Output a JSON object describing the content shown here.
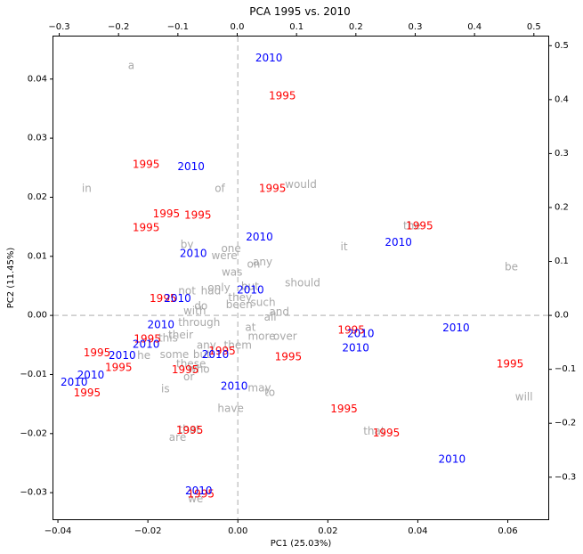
{
  "chart_data": {
    "type": "scatter",
    "title": "PCA 1995 vs. 2010",
    "xlabel": "PC1 (25.03%)",
    "ylabel": "PC2 (11.45%)",
    "xlim": [
      -0.041,
      0.069
    ],
    "ylim": [
      -0.0345,
      0.0472
    ],
    "x_ticks": [
      -0.04,
      -0.02,
      0.0,
      0.02,
      0.04,
      0.06
    ],
    "x_tick_labels": [
      "−0.04",
      "−0.02",
      "0.00",
      "0.02",
      "0.04",
      "0.06"
    ],
    "y_ticks": [
      -0.03,
      -0.02,
      -0.01,
      0.0,
      0.01,
      0.02,
      0.03,
      0.04
    ],
    "y_tick_labels": [
      "−0.03",
      "−0.02",
      "−0.01",
      "0.00",
      "0.01",
      "0.02",
      "0.03",
      "0.04"
    ],
    "top_axis": {
      "xlim": [
        -0.3098,
        0.5243
      ],
      "ticks": [
        -0.3,
        -0.2,
        -0.1,
        0.0,
        0.1,
        0.2,
        0.3,
        0.4,
        0.5
      ],
      "tick_labels": [
        "−0.3",
        "−0.2",
        "−0.1",
        "0.0",
        "0.1",
        "0.2",
        "0.3",
        "0.4",
        "0.5"
      ]
    },
    "right_axis": {
      "ylim": [
        -0.378,
        0.517
      ],
      "ticks": [
        -0.3,
        -0.2,
        -0.1,
        0.0,
        0.1,
        0.2,
        0.3,
        0.4,
        0.5
      ],
      "tick_labels": [
        "−0.3",
        "−0.2",
        "−0.1",
        "0.0",
        "0.1",
        "0.2",
        "0.3",
        "0.4",
        "0.5"
      ]
    },
    "zero_lines": true,
    "colors": {
      "1995": "#ff0000",
      "2010": "#0000ff",
      "word": "#a9a9a9",
      "zero_line": "#c8c8c8"
    },
    "series": [
      {
        "name": "1995",
        "points": [
          {
            "x": 0.0099,
            "y": 0.0372,
            "label": "1995"
          },
          {
            "x": -0.0204,
            "y": 0.0256,
            "label": "1995"
          },
          {
            "x": 0.0077,
            "y": 0.0215,
            "label": "1995"
          },
          {
            "x": -0.0159,
            "y": 0.0172,
            "label": "1995"
          },
          {
            "x": -0.0089,
            "y": 0.017,
            "label": "1995"
          },
          {
            "x": -0.0204,
            "y": 0.0149,
            "label": "1995"
          },
          {
            "x": 0.0404,
            "y": 0.0152,
            "label": "1995"
          },
          {
            "x": -0.0166,
            "y": 0.0029,
            "label": "1995"
          },
          {
            "x": -0.0201,
            "y": -0.004,
            "label": "1995"
          },
          {
            "x": -0.0313,
            "y": -0.0063,
            "label": "1995"
          },
          {
            "x": 0.0252,
            "y": -0.0025,
            "label": "1995"
          },
          {
            "x": 0.0112,
            "y": -0.007,
            "label": "1995"
          },
          {
            "x": -0.0035,
            "y": -0.006,
            "label": "1995"
          },
          {
            "x": -0.0265,
            "y": -0.0088,
            "label": "1995"
          },
          {
            "x": -0.0117,
            "y": -0.0092,
            "label": "1995"
          },
          {
            "x": 0.0605,
            "y": -0.0082,
            "label": "1995"
          },
          {
            "x": -0.0335,
            "y": -0.0131,
            "label": "1995"
          },
          {
            "x": 0.0236,
            "y": -0.0158,
            "label": "1995"
          },
          {
            "x": 0.033,
            "y": -0.0199,
            "label": "1995"
          },
          {
            "x": -0.0107,
            "y": -0.0194,
            "label": "1995"
          },
          {
            "x": -0.0082,
            "y": -0.0302,
            "label": "1995"
          }
        ]
      },
      {
        "name": "2010",
        "points": [
          {
            "x": 0.0069,
            "y": 0.0436,
            "label": "2010"
          },
          {
            "x": -0.0104,
            "y": 0.0252,
            "label": "2010"
          },
          {
            "x": 0.0048,
            "y": 0.0133,
            "label": "2010"
          },
          {
            "x": 0.0357,
            "y": 0.0124,
            "label": "2010"
          },
          {
            "x": -0.0099,
            "y": 0.0105,
            "label": "2010"
          },
          {
            "x": -0.0134,
            "y": 0.0029,
            "label": "2010"
          },
          {
            "x": 0.0028,
            "y": 0.0043,
            "label": "2010"
          },
          {
            "x": -0.0171,
            "y": -0.0016,
            "label": "2010"
          },
          {
            "x": 0.0485,
            "y": -0.0021,
            "label": "2010"
          },
          {
            "x": 0.0273,
            "y": -0.0031,
            "label": "2010"
          },
          {
            "x": -0.0204,
            "y": -0.0049,
            "label": "2010"
          },
          {
            "x": 0.0262,
            "y": -0.0055,
            "label": "2010"
          },
          {
            "x": -0.0257,
            "y": -0.0068,
            "label": "2010"
          },
          {
            "x": -0.005,
            "y": -0.0066,
            "label": "2010"
          },
          {
            "x": -0.0327,
            "y": -0.0101,
            "label": "2010"
          },
          {
            "x": -0.0364,
            "y": -0.0113,
            "label": "2010"
          },
          {
            "x": -0.0008,
            "y": -0.012,
            "label": "2010"
          },
          {
            "x": 0.0476,
            "y": -0.0243,
            "label": "2010"
          },
          {
            "x": -0.0087,
            "y": -0.0297,
            "label": "2010"
          }
        ]
      },
      {
        "name": "words",
        "points": [
          {
            "x": -0.0237,
            "y": 0.0423,
            "label": "a"
          },
          {
            "x": 0.014,
            "y": 0.0222,
            "label": "would"
          },
          {
            "x": -0.0336,
            "y": 0.0215,
            "label": "in"
          },
          {
            "x": -0.004,
            "y": 0.0215,
            "label": "of"
          },
          {
            "x": 0.0387,
            "y": 0.0152,
            "label": "the"
          },
          {
            "x": -0.0113,
            "y": 0.012,
            "label": "by"
          },
          {
            "x": -0.0015,
            "y": 0.0113,
            "label": "one"
          },
          {
            "x": 0.0236,
            "y": 0.0116,
            "label": "it"
          },
          {
            "x": -0.003,
            "y": 0.0101,
            "label": "were"
          },
          {
            "x": 0.0035,
            "y": 0.0087,
            "label": "on"
          },
          {
            "x": 0.0055,
            "y": 0.0091,
            "label": "any"
          },
          {
            "x": 0.0608,
            "y": 0.0082,
            "label": "be"
          },
          {
            "x": -0.0013,
            "y": 0.0073,
            "label": "was"
          },
          {
            "x": 0.0144,
            "y": 0.0055,
            "label": "should"
          },
          {
            "x": -0.0113,
            "y": 0.0042,
            "label": "not"
          },
          {
            "x": -0.0042,
            "y": 0.0047,
            "label": "only"
          },
          {
            "x": 0.0027,
            "y": 0.0049,
            "label": "but"
          },
          {
            "x": -0.006,
            "y": 0.0042,
            "label": "had"
          },
          {
            "x": 0.0056,
            "y": 0.0022,
            "label": "such"
          },
          {
            "x": 0.0005,
            "y": 0.003,
            "label": "they"
          },
          {
            "x": -0.0082,
            "y": 0.0016,
            "label": "do"
          },
          {
            "x": 0.0003,
            "y": 0.0018,
            "label": "been"
          },
          {
            "x": -0.0096,
            "y": 0.0008,
            "label": "with"
          },
          {
            "x": 0.0092,
            "y": 0.0006,
            "label": "and"
          },
          {
            "x": 0.0072,
            "y": -0.0003,
            "label": "all"
          },
          {
            "x": -0.0086,
            "y": -0.0012,
            "label": "through"
          },
          {
            "x": 0.0105,
            "y": -0.0035,
            "label": "over"
          },
          {
            "x": 0.0053,
            "y": -0.0035,
            "label": "more"
          },
          {
            "x": -0.0127,
            "y": -0.0033,
            "label": "their"
          },
          {
            "x": -0.0155,
            "y": -0.0038,
            "label": "this"
          },
          {
            "x": -0.007,
            "y": -0.005,
            "label": "any"
          },
          {
            "x": 0.0,
            "y": -0.005,
            "label": "them"
          },
          {
            "x": 0.0028,
            "y": -0.002,
            "label": "at"
          },
          {
            "x": -0.0141,
            "y": -0.0066,
            "label": "some"
          },
          {
            "x": -0.0209,
            "y": -0.0068,
            "label": "he"
          },
          {
            "x": -0.008,
            "y": -0.0066,
            "label": "but"
          },
          {
            "x": -0.0104,
            "y": -0.0082,
            "label": "these"
          },
          {
            "x": -0.0087,
            "y": -0.0091,
            "label": "who"
          },
          {
            "x": -0.0109,
            "y": -0.0104,
            "label": "or"
          },
          {
            "x": -0.0161,
            "y": -0.0124,
            "label": "is"
          },
          {
            "x": 0.0048,
            "y": -0.0123,
            "label": "may"
          },
          {
            "x": 0.0071,
            "y": -0.013,
            "label": "to"
          },
          {
            "x": -0.0016,
            "y": -0.0157,
            "label": "have"
          },
          {
            "x": 0.0636,
            "y": -0.0138,
            "label": "will"
          },
          {
            "x": 0.0303,
            "y": -0.0196,
            "label": "that"
          },
          {
            "x": -0.0108,
            "y": -0.0193,
            "label": "that"
          },
          {
            "x": -0.0134,
            "y": -0.0206,
            "label": "are"
          },
          {
            "x": -0.0094,
            "y": -0.031,
            "label": "we"
          }
        ]
      }
    ]
  }
}
